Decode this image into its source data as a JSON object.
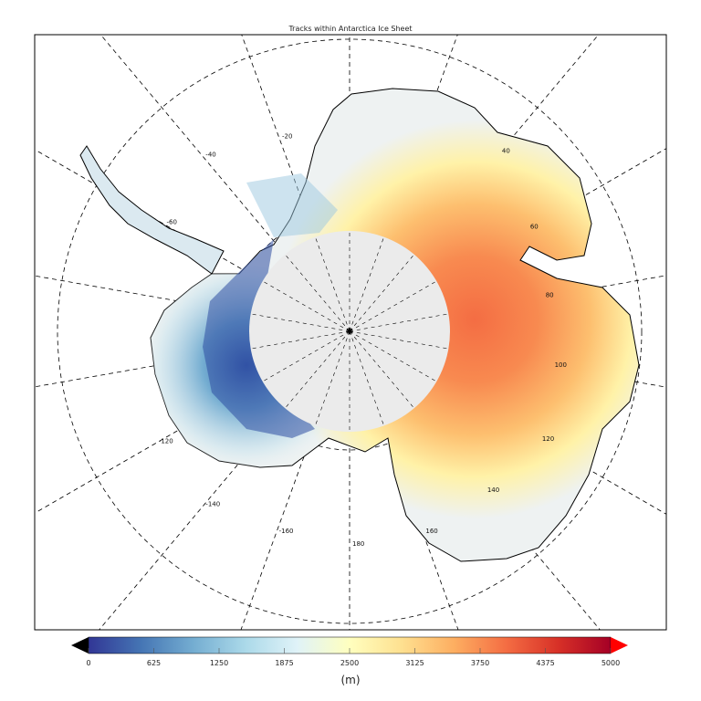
{
  "title": "Tracks within Antarctica Ice Sheet",
  "map": {
    "projection": "south polar stereographic",
    "longitude_labels": [
      "-20",
      "-40",
      "-60",
      "40",
      "60",
      "80",
      "100",
      "120",
      "140",
      "160",
      "180",
      "-160",
      "-140",
      "-120"
    ],
    "pole_hole_color": "#ebebeb",
    "coastline_color": "#000000",
    "graticule": "dashed"
  },
  "colorbar": {
    "ticks": [
      "0",
      "625",
      "1250",
      "1875",
      "2500",
      "3125",
      "3750",
      "4375",
      "5000"
    ],
    "min": 0,
    "max": 5000,
    "unit": "(m)",
    "under_color": "#000000",
    "over_color": "#ff0000",
    "colors": [
      "#313695",
      "#4575b4",
      "#74add1",
      "#abd9e9",
      "#e0f3f8",
      "#ffffbf",
      "#fee090",
      "#fdae61",
      "#f46d43",
      "#d73027",
      "#a50026"
    ]
  }
}
